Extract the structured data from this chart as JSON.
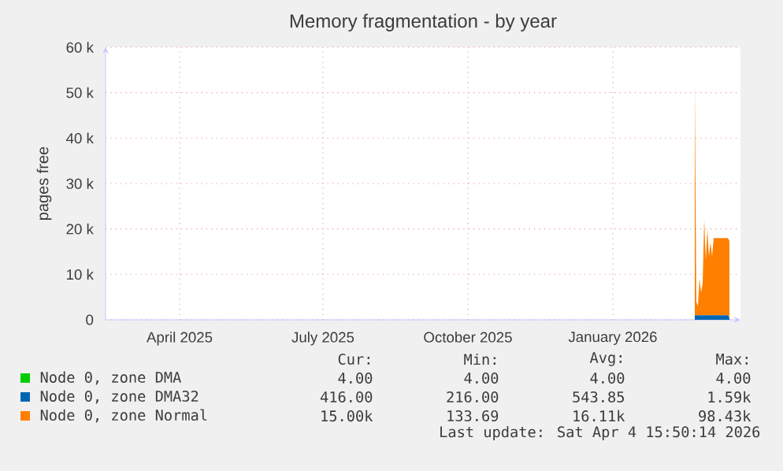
{
  "chart_data": {
    "type": "area",
    "title": "Memory fragmentation - by year",
    "ylabel": "pages free",
    "stacked": true,
    "grid": true,
    "legend": "bottom",
    "xlim": [
      "2025-02-25",
      "2026-04-04"
    ],
    "ylim": [
      0,
      60000
    ],
    "xticks": [
      {
        "value": "2025-04-13",
        "label": "April 2025"
      },
      {
        "value": "2025-07-13",
        "label": "July 2025"
      },
      {
        "value": "2025-10-13",
        "label": "October 2025"
      },
      {
        "value": "2026-01-13",
        "label": "January 2026"
      }
    ],
    "yticks": [
      0,
      {
        "value": 10000,
        "label": "10 k"
      },
      {
        "value": 20000,
        "label": "20 k"
      },
      {
        "value": 30000,
        "label": "30 k"
      },
      {
        "value": 40000,
        "label": "40 k"
      },
      {
        "value": 50000,
        "label": "50 k"
      },
      {
        "value": 60000,
        "label": "60 k"
      }
    ],
    "x": [
      "2026-03-06",
      "2026-03-07",
      "2026-03-08",
      "2026-03-09",
      "2026-03-10",
      "2026-03-11",
      "2026-03-12",
      "2026-03-13",
      "2026-03-14",
      "2026-03-15",
      "2026-03-16",
      "2026-03-17",
      "2026-03-18",
      "2026-03-19",
      "2026-03-20",
      "2026-03-21",
      "2026-03-22",
      "2026-03-23",
      "2026-03-24",
      "2026-03-25",
      "2026-03-26",
      "2026-03-27",
      "2026-03-28"
    ],
    "series": [
      {
        "name": "Node 0, zone DMA",
        "color": "#00cc00",
        "values": [
          null,
          null,
          null,
          null,
          null,
          null,
          null,
          null,
          null,
          null,
          null,
          null,
          null,
          null,
          null,
          null,
          null,
          null,
          null,
          null,
          null,
          null,
          null
        ]
      },
      {
        "name": "Node 0, zone DMA32",
        "color": "#0066b3",
        "values": [
          1000,
          1000,
          1000,
          1000,
          1000,
          1000,
          1000,
          1000,
          1000,
          1000,
          1000,
          1000,
          1000,
          1000,
          1000,
          1000,
          1000,
          1000,
          1000,
          1000,
          1000,
          1000,
          400
        ]
      },
      {
        "name": "Node 0, zone Normal",
        "color": "#ff8000",
        "values": [
          51000,
          3000,
          2000,
          8000,
          5000,
          7000,
          21000,
          12000,
          19000,
          13000,
          16000,
          13000,
          17000,
          17000,
          17000,
          17000,
          17000,
          17000,
          17000,
          17000,
          17000,
          17000,
          17000
        ]
      }
    ],
    "annotations": [
      "Cur:",
      "Min:",
      "Avg:",
      "Max:",
      "4.00",
      "4.00",
      "4.00",
      "4.00",
      "416.00",
      "216.00",
      "543.85",
      "1.59k",
      "15.00k",
      "133.69",
      "16.11k",
      "98.43k",
      "Last update: Sat Apr  4 15:50:14 2026"
    ]
  }
}
